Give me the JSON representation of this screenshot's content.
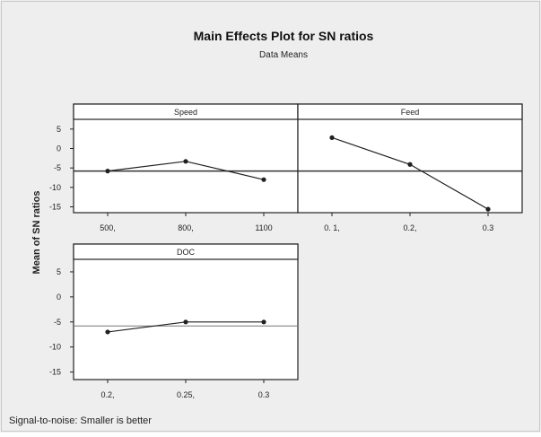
{
  "chart_data": {
    "type": "line",
    "title": "Main Effects Plot for SN ratios",
    "subtitle": "Data Means",
    "ylabel": "Mean of SN ratios",
    "ylim": [
      -16.5,
      7.5
    ],
    "yticks": [
      5,
      0,
      -5,
      -10,
      -15
    ],
    "ytick_labels": [
      "5",
      "0",
      "-5",
      "-10",
      "-15"
    ],
    "grand_mean": -5.8,
    "footnote": "Signal-to-noise: Smaller is better",
    "colors": {
      "line": "#202020",
      "background": "#eeeeee",
      "panel": "#ffffff"
    },
    "panels": [
      {
        "name": "Speed",
        "categories": [
          "500",
          "800",
          "1100"
        ],
        "tick_labels": [
          "500,",
          "800,",
          "1100"
        ],
        "values": [
          -5.8,
          -3.3,
          -8.0
        ]
      },
      {
        "name": "Feed",
        "categories": [
          "0.1",
          "0.2",
          "0.3"
        ],
        "tick_labels": [
          "0. 1,",
          "0.2,",
          "0.3"
        ],
        "values": [
          2.8,
          -4.1,
          -15.6
        ]
      },
      {
        "name": "DOC",
        "categories": [
          "0.2",
          "0.25",
          "0.3"
        ],
        "tick_labels": [
          "0.2,",
          "0.25,",
          "0.3"
        ],
        "values": [
          -7.0,
          -5.0,
          -5.0
        ]
      }
    ]
  }
}
